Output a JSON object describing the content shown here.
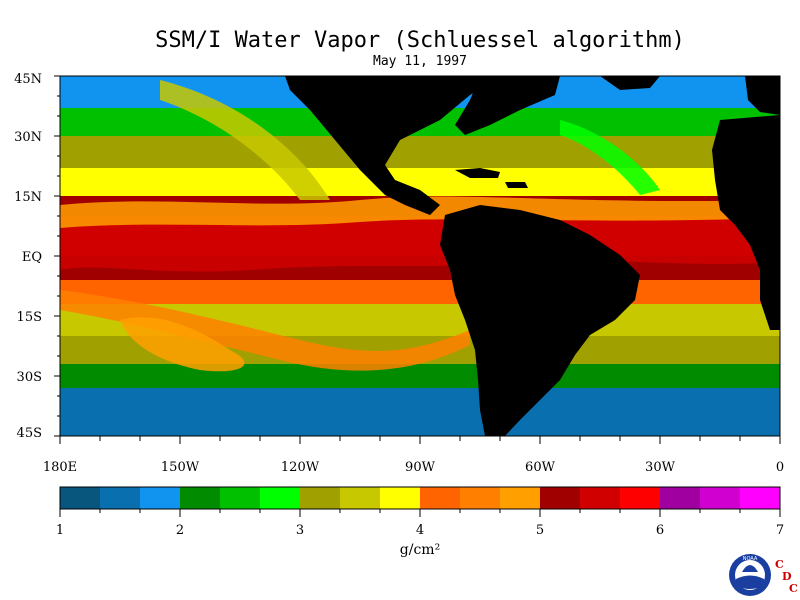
{
  "title": "SSM/I Water Vapor (Schluessel algorithm)",
  "subtitle": "May 11, 1997",
  "map": {
    "lat_labels": [
      "45N",
      "30N",
      "15N",
      "EQ",
      "15S",
      "30S",
      "45S"
    ],
    "lon_labels": [
      "180E",
      "150W",
      "120W",
      "90W",
      "60W",
      "30W",
      "0"
    ],
    "land_color": "#000000",
    "ocean_bands": [
      {
        "lat_from": 45,
        "lat_to": 37,
        "class": 2
      },
      {
        "lat_from": 37,
        "lat_to": 30,
        "class": 4
      },
      {
        "lat_from": 30,
        "lat_to": 22,
        "class": 6
      },
      {
        "lat_from": 22,
        "lat_to": 15,
        "class": 8
      },
      {
        "lat_from": 15,
        "lat_to": 10,
        "class": 12
      },
      {
        "lat_from": 10,
        "lat_to": 0,
        "class": 13
      },
      {
        "lat_from": 0,
        "lat_to": -6,
        "class": 12
      },
      {
        "lat_from": -6,
        "lat_to": -12,
        "class": 9
      },
      {
        "lat_from": -12,
        "lat_to": -20,
        "class": 7
      },
      {
        "lat_from": -20,
        "lat_to": -27,
        "class": 6
      },
      {
        "lat_from": -27,
        "lat_to": -33,
        "class": 3
      },
      {
        "lat_from": -33,
        "lat_to": -45,
        "class": 1
      }
    ]
  },
  "colorbar": {
    "labels": [
      "1",
      "2",
      "3",
      "4",
      "5",
      "6",
      "7"
    ],
    "min": 1,
    "max": 7,
    "colors": [
      "#08567d",
      "#0a6fae",
      "#1193f0",
      "#008b00",
      "#00c000",
      "#00ff00",
      "#a0a000",
      "#c8c800",
      "#ffff00",
      "#ff6400",
      "#ff8000",
      "#ffa000",
      "#a00000",
      "#d00000",
      "#ff0000",
      "#a000a0",
      "#d000d0",
      "#ff00ff"
    ],
    "units_text": "g/cm²"
  },
  "logo": {
    "text": "NOAA",
    "letters": [
      "C",
      "D",
      "C"
    ],
    "letter_color": "#cc0000"
  }
}
